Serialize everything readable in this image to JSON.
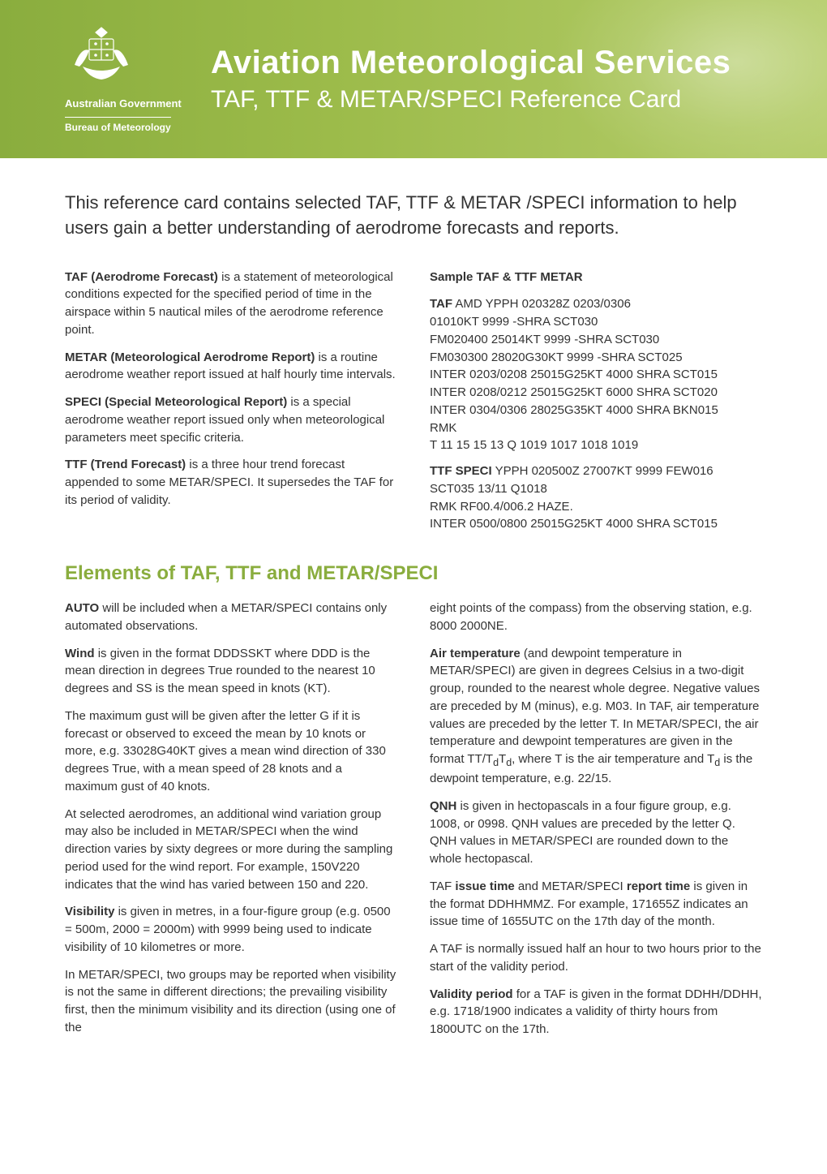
{
  "header": {
    "gov": "Australian Government",
    "bureau": "Bureau of Meteorology",
    "title": "Aviation Meteorological Services",
    "subtitle": "TAF, TTF & METAR/SPECI Reference Card",
    "bg_gradient_from": "#8aad3e",
    "bg_gradient_to": "#b5cd6a"
  },
  "intro": "This reference card contains selected TAF, TTF & METAR /SPECI information to help users gain a better understanding of aerodrome forecasts and reports.",
  "definitions": {
    "taf_bold": "TAF (Aerodrome Forecast)",
    "taf_text": " is a statement of meteorological conditions expected for the speci­fied period of time in the airspace within 5 nauti­cal miles of the aerodrome reference point.",
    "metar_bold": "METAR (Meteorological Aerodrome Report)",
    "metar_text": " is a routine aerodrome weather report issued at half hourly time intervals.",
    "speci_bold": "SPECI (Special Meteorological Report)",
    "speci_text": " is a spe­cial aerodrome weather report issued only when meteorological parameters meet specific criteria.",
    "ttf_bold": "TTF (Trend Forecast)",
    "ttf_text": " is a three hour trend forecast appended to some METAR/SPECI. It supersedes the TAF for its period of validity."
  },
  "sample": {
    "heading": "Sample TAF & TTF METAR",
    "taf_label": "TAF",
    "taf_lines": [
      " AMD YPPH 020328Z 0203/0306",
      "01010KT 9999 -SHRA SCT030",
      "FM020400 25014KT 9999 -SHRA SCT030",
      "FM030300 28020G30KT 9999 -SHRA SCT025",
      "INTER 0203/0208 25015G25KT 4000 SHRA SCT015",
      "INTER 0208/0212 25015G25KT 6000 SHRA SCT020",
      "INTER 0304/0306 28025G35KT 4000 SHRA BKN015",
      "RMK",
      "T 11 15 15 13 Q 1019 1017 1018 1019"
    ],
    "ttf_label": "TTF SPECI",
    "ttf_lines": [
      " YPPH 020500Z 27007KT 9999 FEW016",
      "SCT035 13/11 Q1018",
      "RMK RF00.4/006.2 HAZE.",
      "INTER 0500/0800 25015G25KT 4000 SHRA SCT015"
    ]
  },
  "elements": {
    "title": "Elements of TAF,  TTF and METAR/SPECI",
    "left": [
      {
        "bold": "AUTO",
        "text": " will be included when a METAR/SPECI contains only automated observations."
      },
      {
        "bold": "Wind",
        "text": " is given in the format DDDSSKT where DDD is the mean direction in degrees True rounded to the nearest 10 degrees and SS is the mean speed in knots (KT)."
      },
      {
        "bold": "",
        "text": "The maximum gust will be given after the letter G if it is forecast or observed to exceed the mean by 10 knots or more, e.g. 33028G40KT gives a mean wind direction of 330 degrees True, with a mean speed of 28 knots and a maximum gust of 40 knots."
      },
      {
        "bold": "",
        "text": "At selected aerodromes, an additional wind variation group may also be included in METAR/SPECI when the wind direction varies by sixty degrees or more during the sampling period used for the wind report. For example, 150V220 indicates that the wind has varied between 150 and 220."
      },
      {
        "bold": "Visibility",
        "text": " is given in metres, in a four-figure group (e.g. 0500 = 500m, 2000 = 2000m) with 9999 being used to indicate visibility of 10 kilometres or more."
      },
      {
        "bold": "",
        "text": "In METAR/SPECI, two groups may be reported when visibility is not the same in different directions; the prevailing visibility first, then the minimum visibility and its direction (using one of the"
      }
    ],
    "right": [
      {
        "bold": "",
        "text": "eight points of the compass) from the observing station, e.g. 8000 2000NE."
      },
      {
        "bold": "Air temperature",
        "text": " (and dewpoint temperature in METAR/SPECI) are given in degrees Celsius in a two-digit group, rounded to the nearest whole degree. Negative values are preceded by M (minus), e.g. M03. In TAF, air temperature values are preceded by the letter T. In METAR/SPECI, the air temperature and dewpoint temperatures are given in the format TT/TdTd, where T is the air temperature and Td is the dewpoint temperature, e.g. 22/15."
      },
      {
        "bold": "QNH",
        "text": " is given in hectopascals in a four figure group, e.g. 1008, or 0998. QNH values are preceded by the letter Q. QNH values in METAR/SPECI are rounded down to the whole hectopascal."
      },
      {
        "bold_prefix": "TAF ",
        "bold": "issue time",
        "mid": " and METAR/SPECI ",
        "bold2": "report time",
        "text": " is given in the format DDHHMMZ. For example, 171655Z indicates an issue time of 1655UTC on the 17th day of the month."
      },
      {
        "bold": "",
        "text": "A TAF is normally issued half an hour to two hours prior to the start of the validity period."
      },
      {
        "bold": "Validity period",
        "text": " for a TAF is given in the format DDHH/DDHH, e.g. 1718/1900 indicates a validity of thirty hours from 1800UTC on the 17th."
      }
    ]
  },
  "colors": {
    "accent": "#8aad3e",
    "text": "#333333",
    "white": "#ffffff"
  },
  "typography": {
    "intro_fontsize": 22,
    "body_fontsize": 15,
    "section_title_fontsize": 24,
    "header_title_fontsize": 40,
    "header_subtitle_fontsize": 30
  }
}
